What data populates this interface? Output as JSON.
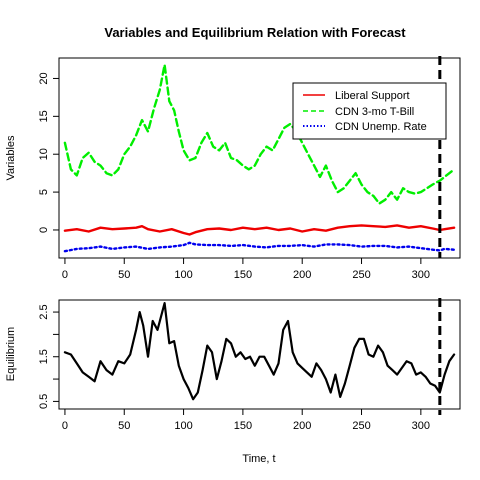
{
  "chart_data": [
    {
      "type": "line",
      "title": "Variables and Equilibrium Relation with Forecast",
      "xlabel": "",
      "ylabel": "Variables",
      "xlim": [
        -5,
        333
      ],
      "ylim": [
        -3.7,
        22.7
      ],
      "x_ticks": [
        0,
        50,
        100,
        150,
        200,
        250,
        300
      ],
      "y_ticks": [
        0,
        5,
        10,
        15,
        20
      ],
      "forecast_line_x": 316,
      "legend_position": "top-right",
      "legend": [
        "Liberal Support",
        "CDN 3-mo T-Bill",
        "CDN Unemp. Rate"
      ],
      "series": [
        {
          "name": "Liberal Support",
          "color": "#ee0000",
          "line": "solid",
          "points": [
            [
              0,
              -0.1
            ],
            [
              10,
              0.1
            ],
            [
              20,
              -0.2
            ],
            [
              30,
              0.3
            ],
            [
              40,
              0.1
            ],
            [
              50,
              0.2
            ],
            [
              60,
              0.3
            ],
            [
              65,
              0.5
            ],
            [
              70,
              0.1
            ],
            [
              80,
              -0.2
            ],
            [
              90,
              0.1
            ],
            [
              100,
              -0.4
            ],
            [
              105,
              -0.6
            ],
            [
              110,
              -0.3
            ],
            [
              120,
              0.1
            ],
            [
              130,
              0.2
            ],
            [
              140,
              0.0
            ],
            [
              150,
              0.3
            ],
            [
              160,
              0.1
            ],
            [
              170,
              0.3
            ],
            [
              180,
              0.0
            ],
            [
              190,
              0.2
            ],
            [
              200,
              -0.2
            ],
            [
              210,
              0.1
            ],
            [
              220,
              -0.1
            ],
            [
              230,
              0.3
            ],
            [
              240,
              0.5
            ],
            [
              250,
              0.6
            ],
            [
              260,
              0.5
            ],
            [
              270,
              0.4
            ],
            [
              280,
              0.6
            ],
            [
              290,
              0.3
            ],
            [
              300,
              0.5
            ],
            [
              310,
              0.2
            ],
            [
              316,
              0.0
            ],
            [
              320,
              0.1
            ],
            [
              328,
              0.3
            ]
          ]
        },
        {
          "name": "CDN 3-mo T-Bill",
          "color": "#00ee00",
          "line": "dashed",
          "points": [
            [
              0,
              11.5
            ],
            [
              5,
              8.0
            ],
            [
              10,
              7.2
            ],
            [
              15,
              9.5
            ],
            [
              20,
              10.2
            ],
            [
              25,
              9.0
            ],
            [
              30,
              8.5
            ],
            [
              35,
              7.5
            ],
            [
              40,
              7.2
            ],
            [
              45,
              8.0
            ],
            [
              50,
              10.0
            ],
            [
              55,
              11.0
            ],
            [
              60,
              12.5
            ],
            [
              65,
              14.5
            ],
            [
              70,
              13.0
            ],
            [
              75,
              16.0
            ],
            [
              80,
              18.5
            ],
            [
              84,
              21.8
            ],
            [
              88,
              17.0
            ],
            [
              92,
              15.8
            ],
            [
              96,
              13.0
            ],
            [
              100,
              10.5
            ],
            [
              105,
              9.2
            ],
            [
              110,
              9.5
            ],
            [
              115,
              11.5
            ],
            [
              120,
              12.8
            ],
            [
              125,
              11.0
            ],
            [
              130,
              10.5
            ],
            [
              135,
              11.5
            ],
            [
              140,
              9.5
            ],
            [
              145,
              9.2
            ],
            [
              150,
              8.5
            ],
            [
              155,
              8.0
            ],
            [
              160,
              8.5
            ],
            [
              165,
              10.0
            ],
            [
              170,
              11.0
            ],
            [
              175,
              10.5
            ],
            [
              180,
              12.0
            ],
            [
              185,
              13.5
            ],
            [
              190,
              14.0
            ],
            [
              195,
              13.0
            ],
            [
              200,
              11.5
            ],
            [
              205,
              10.0
            ],
            [
              210,
              8.5
            ],
            [
              215,
              7.0
            ],
            [
              220,
              8.5
            ],
            [
              225,
              6.5
            ],
            [
              230,
              5.0
            ],
            [
              235,
              5.5
            ],
            [
              240,
              6.5
            ],
            [
              245,
              7.5
            ],
            [
              250,
              6.0
            ],
            [
              255,
              5.0
            ],
            [
              260,
              4.5
            ],
            [
              265,
              3.5
            ],
            [
              270,
              4.0
            ],
            [
              275,
              5.0
            ],
            [
              280,
              4.0
            ],
            [
              285,
              5.5
            ],
            [
              290,
              5.0
            ],
            [
              295,
              4.8
            ],
            [
              300,
              5.0
            ],
            [
              305,
              5.5
            ],
            [
              310,
              6.0
            ],
            [
              316,
              6.5
            ],
            [
              320,
              7.0
            ],
            [
              328,
              8.0
            ]
          ]
        },
        {
          "name": "CDN Unemp. Rate",
          "color": "#0000ee",
          "line": "dotted",
          "points": [
            [
              0,
              -2.8
            ],
            [
              10,
              -2.5
            ],
            [
              20,
              -2.4
            ],
            [
              30,
              -2.2
            ],
            [
              40,
              -2.5
            ],
            [
              50,
              -2.3
            ],
            [
              60,
              -2.2
            ],
            [
              70,
              -2.5
            ],
            [
              80,
              -2.3
            ],
            [
              90,
              -2.2
            ],
            [
              100,
              -2.0
            ],
            [
              105,
              -1.7
            ],
            [
              110,
              -1.9
            ],
            [
              120,
              -2.0
            ],
            [
              130,
              -2.0
            ],
            [
              140,
              -2.1
            ],
            [
              150,
              -2.0
            ],
            [
              160,
              -2.2
            ],
            [
              170,
              -2.3
            ],
            [
              180,
              -2.1
            ],
            [
              190,
              -2.1
            ],
            [
              200,
              -2.0
            ],
            [
              210,
              -2.2
            ],
            [
              220,
              -1.9
            ],
            [
              230,
              -1.9
            ],
            [
              240,
              -2.0
            ],
            [
              250,
              -2.2
            ],
            [
              260,
              -2.1
            ],
            [
              270,
              -2.1
            ],
            [
              280,
              -2.3
            ],
            [
              290,
              -2.2
            ],
            [
              300,
              -2.4
            ],
            [
              310,
              -2.6
            ],
            [
              316,
              -2.7
            ],
            [
              320,
              -2.5
            ],
            [
              328,
              -2.6
            ]
          ]
        }
      ]
    },
    {
      "type": "line",
      "title": "",
      "xlabel": "Time, t",
      "ylabel": "Equilibrium",
      "xlim": [
        -5,
        333
      ],
      "ylim": [
        0.33,
        2.77
      ],
      "x_ticks": [
        0,
        50,
        100,
        150,
        200,
        250,
        300
      ],
      "y_ticks": [
        0.5,
        1.5,
        2.5
      ],
      "y_minor_ticks": [
        1.0,
        2.0
      ],
      "forecast_line_x": 316,
      "series": [
        {
          "name": "",
          "color": "#000000",
          "line": "solid",
          "points": [
            [
              0,
              1.6
            ],
            [
              5,
              1.55
            ],
            [
              10,
              1.35
            ],
            [
              15,
              1.15
            ],
            [
              20,
              1.05
            ],
            [
              25,
              0.95
            ],
            [
              30,
              1.4
            ],
            [
              35,
              1.2
            ],
            [
              40,
              1.1
            ],
            [
              45,
              1.4
            ],
            [
              50,
              1.35
            ],
            [
              55,
              1.55
            ],
            [
              60,
              2.1
            ],
            [
              63,
              2.5
            ],
            [
              66,
              2.2
            ],
            [
              70,
              1.5
            ],
            [
              74,
              2.3
            ],
            [
              78,
              2.1
            ],
            [
              82,
              2.5
            ],
            [
              84,
              2.7
            ],
            [
              88,
              1.8
            ],
            [
              92,
              1.85
            ],
            [
              96,
              1.3
            ],
            [
              100,
              1.0
            ],
            [
              104,
              0.8
            ],
            [
              108,
              0.55
            ],
            [
              112,
              0.7
            ],
            [
              116,
              1.2
            ],
            [
              120,
              1.75
            ],
            [
              124,
              1.6
            ],
            [
              128,
              1.0
            ],
            [
              132,
              1.4
            ],
            [
              136,
              1.9
            ],
            [
              140,
              1.8
            ],
            [
              144,
              1.5
            ],
            [
              148,
              1.6
            ],
            [
              152,
              1.45
            ],
            [
              156,
              1.5
            ],
            [
              160,
              1.3
            ],
            [
              164,
              1.5
            ],
            [
              168,
              1.5
            ],
            [
              172,
              1.3
            ],
            [
              176,
              1.1
            ],
            [
              180,
              1.35
            ],
            [
              184,
              2.1
            ],
            [
              188,
              2.3
            ],
            [
              192,
              1.6
            ],
            [
              196,
              1.35
            ],
            [
              200,
              1.25
            ],
            [
              204,
              1.15
            ],
            [
              208,
              1.05
            ],
            [
              212,
              1.35
            ],
            [
              216,
              1.2
            ],
            [
              220,
              1.0
            ],
            [
              224,
              0.7
            ],
            [
              228,
              1.1
            ],
            [
              232,
              0.6
            ],
            [
              236,
              0.9
            ],
            [
              240,
              1.3
            ],
            [
              244,
              1.7
            ],
            [
              248,
              1.9
            ],
            [
              252,
              1.9
            ],
            [
              256,
              1.55
            ],
            [
              260,
              1.5
            ],
            [
              264,
              1.75
            ],
            [
              268,
              1.6
            ],
            [
              272,
              1.3
            ],
            [
              276,
              1.2
            ],
            [
              280,
              1.1
            ],
            [
              284,
              1.25
            ],
            [
              288,
              1.4
            ],
            [
              292,
              1.35
            ],
            [
              296,
              1.1
            ],
            [
              300,
              1.15
            ],
            [
              304,
              1.05
            ],
            [
              308,
              0.9
            ],
            [
              312,
              0.85
            ],
            [
              316,
              0.7
            ],
            [
              320,
              1.1
            ],
            [
              324,
              1.4
            ],
            [
              328,
              1.55
            ]
          ]
        }
      ]
    }
  ]
}
